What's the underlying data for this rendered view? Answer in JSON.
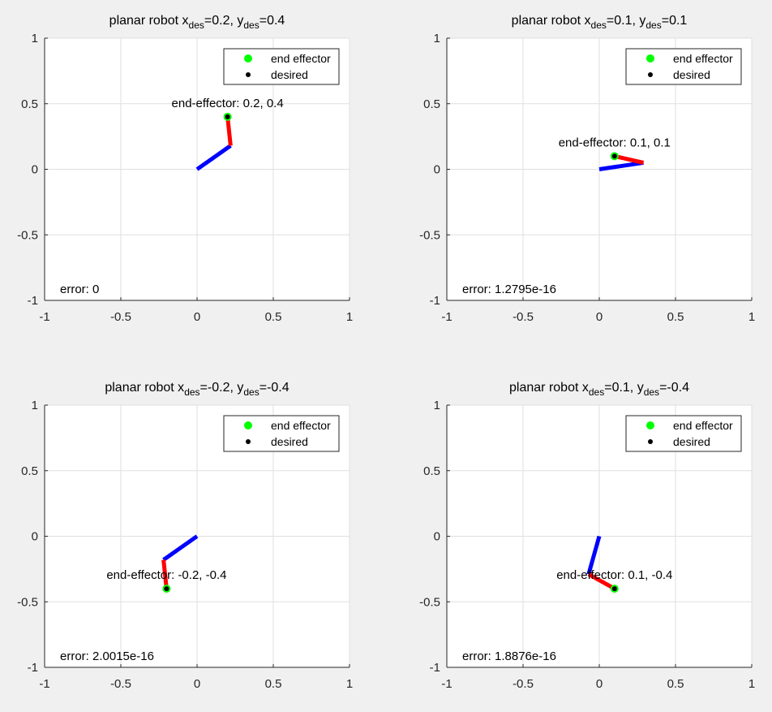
{
  "chart_data": [
    {
      "type": "line",
      "title": "planar robot x",
      "title_sub1": "des",
      "title_mid": "=0.2, y",
      "title_sub2": "des",
      "title_end": "=0.4",
      "xlim": [
        -1,
        1
      ],
      "ylim": [
        -1,
        1
      ],
      "xticks": [
        "-1",
        "-0.5",
        "0",
        "0.5",
        "1"
      ],
      "yticks": [
        "1",
        "0.5",
        "0",
        "-0.5",
        "-1"
      ],
      "grid": true,
      "legend_position": "top-right",
      "legend": [
        "end effector",
        "desired"
      ],
      "series": [
        {
          "values": [
            {
              "x": 0,
              "y": 0
            },
            {
              "x": 0.22,
              "y": 0.18
            }
          ],
          "color": "#0000ff"
        },
        {
          "values": [
            {
              "x": 0.22,
              "y": 0.18
            },
            {
              "x": 0.2,
              "y": 0.4
            }
          ],
          "color": "#ff0000"
        }
      ],
      "end_effector": {
        "x": 0.2,
        "y": 0.4
      },
      "desired": {
        "x": 0.2,
        "y": 0.4
      },
      "annotation": "end-effector: 0.2, 0.4",
      "error_text": "error: 0"
    },
    {
      "type": "line",
      "title": "planar robot x",
      "title_sub1": "des",
      "title_mid": "=0.1, y",
      "title_sub2": "des",
      "title_end": "=0.1",
      "xlim": [
        -1,
        1
      ],
      "ylim": [
        -1,
        1
      ],
      "xticks": [
        "-1",
        "-0.5",
        "0",
        "0.5",
        "1"
      ],
      "yticks": [
        "1",
        "0.5",
        "0",
        "-0.5",
        "-1"
      ],
      "grid": true,
      "legend_position": "top-right",
      "legend": [
        "end effector",
        "desired"
      ],
      "series": [
        {
          "values": [
            {
              "x": 0,
              "y": 0
            },
            {
              "x": 0.29,
              "y": 0.05
            }
          ],
          "color": "#0000ff"
        },
        {
          "values": [
            {
              "x": 0.29,
              "y": 0.05
            },
            {
              "x": 0.1,
              "y": 0.1
            }
          ],
          "color": "#ff0000"
        }
      ],
      "end_effector": {
        "x": 0.1,
        "y": 0.1
      },
      "desired": {
        "x": 0.1,
        "y": 0.1
      },
      "annotation": "end-effector: 0.1, 0.1",
      "error_text": "error: 1.2795e-16"
    },
    {
      "type": "line",
      "title": "planar robot x",
      "title_sub1": "des",
      "title_mid": "=-0.2, y",
      "title_sub2": "des",
      "title_end": "=-0.4",
      "xlim": [
        -1,
        1
      ],
      "ylim": [
        -1,
        1
      ],
      "xticks": [
        "-1",
        "-0.5",
        "0",
        "0.5",
        "1"
      ],
      "yticks": [
        "1",
        "0.5",
        "0",
        "-0.5",
        "-1"
      ],
      "grid": true,
      "legend_position": "top-right",
      "legend": [
        "end effector",
        "desired"
      ],
      "series": [
        {
          "values": [
            {
              "x": 0,
              "y": 0
            },
            {
              "x": -0.22,
              "y": -0.18
            }
          ],
          "color": "#0000ff"
        },
        {
          "values": [
            {
              "x": -0.22,
              "y": -0.18
            },
            {
              "x": -0.2,
              "y": -0.4
            }
          ],
          "color": "#ff0000"
        }
      ],
      "end_effector": {
        "x": -0.2,
        "y": -0.4
      },
      "desired": {
        "x": -0.2,
        "y": -0.4
      },
      "annotation": "end-effector: -0.2, -0.4",
      "error_text": "error: 2.0015e-16"
    },
    {
      "type": "line",
      "title": "planar robot x",
      "title_sub1": "des",
      "title_mid": "=0.1, y",
      "title_sub2": "des",
      "title_end": "=-0.4",
      "xlim": [
        -1,
        1
      ],
      "ylim": [
        -1,
        1
      ],
      "xticks": [
        "-1",
        "-0.5",
        "0",
        "0.5",
        "1"
      ],
      "yticks": [
        "1",
        "0.5",
        "0",
        "-0.5",
        "-1"
      ],
      "grid": true,
      "legend_position": "top-right",
      "legend": [
        "end effector",
        "desired"
      ],
      "series": [
        {
          "values": [
            {
              "x": 0,
              "y": 0
            },
            {
              "x": -0.07,
              "y": -0.29
            }
          ],
          "color": "#0000ff"
        },
        {
          "values": [
            {
              "x": -0.07,
              "y": -0.29
            },
            {
              "x": 0.1,
              "y": -0.4
            }
          ],
          "color": "#ff0000"
        }
      ],
      "end_effector": {
        "x": 0.1,
        "y": -0.4
      },
      "desired": {
        "x": 0.1,
        "y": -0.4
      },
      "annotation": "end-effector: 0.1, -0.4",
      "error_text": "error: 1.8876e-16"
    }
  ],
  "colors": {
    "end_effector": "#00ff00",
    "desired": "#000000",
    "link1": "#0000ff",
    "link2": "#ff0000",
    "background": "#f0f0f0",
    "axes": "#ffffff"
  }
}
